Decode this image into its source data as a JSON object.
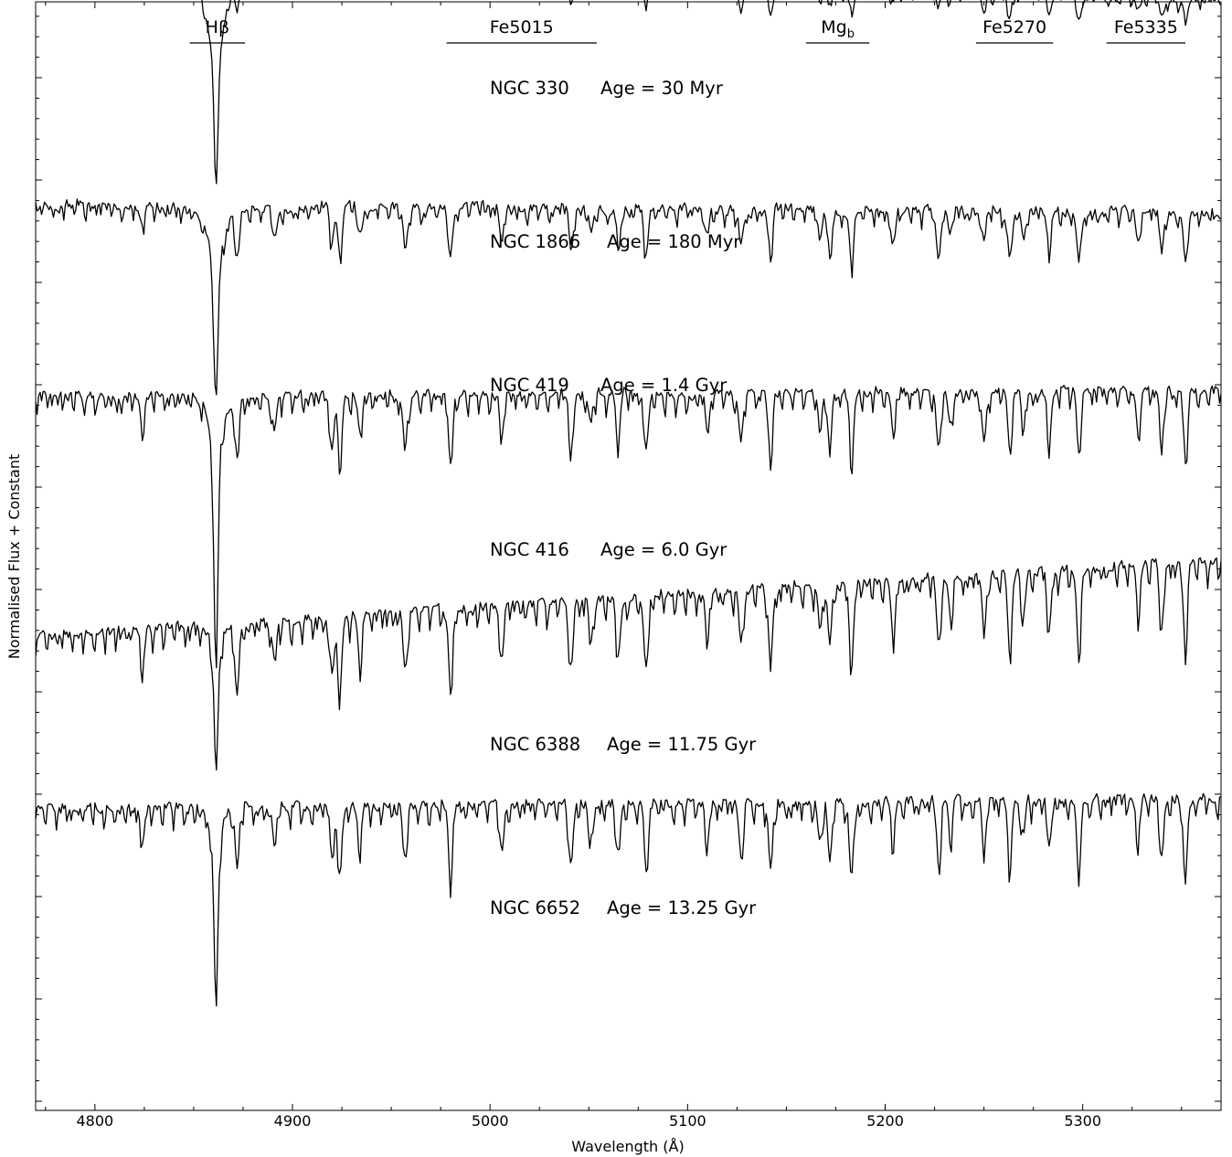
{
  "chart_data": {
    "type": "line",
    "title": "",
    "xlabel": "Wavelength (Å)",
    "ylabel": "Normalised Flux + Constant",
    "xlim": [
      4770,
      5370
    ],
    "x_ticks": [
      4800,
      4900,
      5000,
      5100,
      5200,
      5300
    ],
    "x_tick_labels": [
      "4800",
      "4900",
      "5000",
      "5100",
      "5200",
      "5300"
    ],
    "y_tick_labels": "none",
    "grid": false,
    "legend": "none",
    "line_color": "#000000",
    "bandpasses": [
      {
        "label": "Hβ",
        "start": 4848,
        "end": 4876
      },
      {
        "label": "Fe5015",
        "start": 4978,
        "end": 5054
      },
      {
        "label": "Mg",
        "sub": "b",
        "start": 5160,
        "end": 5192
      },
      {
        "label": "Fe5270",
        "start": 5246,
        "end": 5285
      },
      {
        "label": "Fe5335",
        "start": 5312,
        "end": 5352
      }
    ],
    "series": [
      {
        "name": "NGC 330",
        "age_label": "Age = 30 Myr",
        "offset": 5,
        "continuum_start": 0.95,
        "continuum_end": 0.66,
        "hbeta_depth": 0.8,
        "hbeta_width": 4.5,
        "metal_strength": 0.12,
        "noise": 0.05
      },
      {
        "name": "NGC 1866",
        "age_label": "Age = 180 Myr",
        "offset": 4,
        "continuum_start": 0.86,
        "continuum_end": 0.66,
        "hbeta_depth": 1.05,
        "hbeta_width": 5.5,
        "metal_strength": 0.3,
        "noise": 0.05
      },
      {
        "name": "NGC 419",
        "age_label": "Age = 1.4 Gyr",
        "offset": 3,
        "continuum_start": 0.66,
        "continuum_end": 0.62,
        "hbeta_depth": 0.95,
        "hbeta_width": 3.2,
        "metal_strength": 0.62,
        "noise": 0.045
      },
      {
        "name": "NGC 416",
        "age_label": "Age = 6.0 Gyr",
        "offset": 2,
        "continuum_start": 0.72,
        "continuum_end": 0.75,
        "hbeta_depth": 1.35,
        "hbeta_width": 2.0,
        "metal_strength": 0.85,
        "noise": 0.04
      },
      {
        "name": "NGC 6388",
        "age_label": "Age = 11.75 Gyr",
        "offset": 1,
        "continuum_start": 0.55,
        "continuum_end": 0.92,
        "hbeta_depth": 0.75,
        "hbeta_width": 1.7,
        "metal_strength": 1.0,
        "noise": 0.04
      },
      {
        "name": "NGC 6652",
        "age_label": "Age = 13.25 Gyr",
        "offset": 0,
        "continuum_start": 0.7,
        "continuum_end": 0.75,
        "hbeta_depth": 0.95,
        "hbeta_width": 1.7,
        "metal_strength": 0.9,
        "noise": 0.04
      }
    ],
    "absorption_lines": [
      4824,
      4861,
      4872,
      4891,
      4920,
      4924,
      4934,
      4957,
      4980,
      5006,
      5041,
      5051,
      5065,
      5079,
      5110,
      5127,
      5142,
      5167,
      5172,
      5183,
      5204,
      5227,
      5233,
      5250,
      5263,
      5270,
      5283,
      5298,
      5328,
      5340,
      5352
    ]
  }
}
